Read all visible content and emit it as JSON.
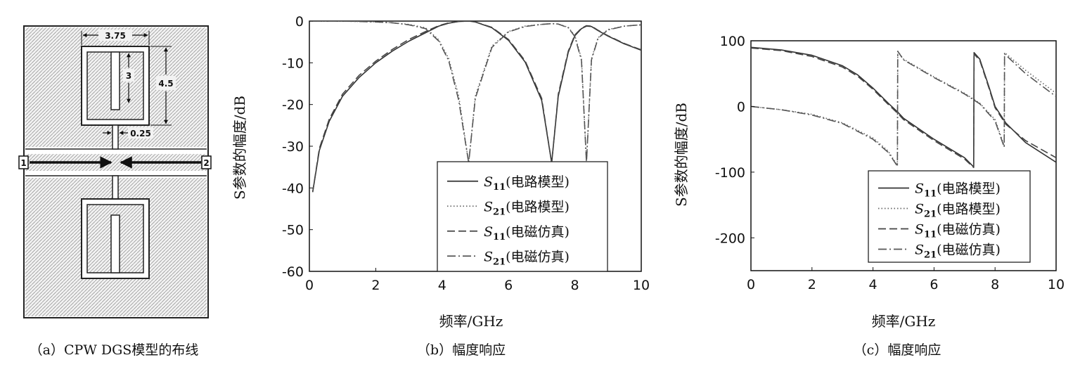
{
  "figure": {
    "captions": {
      "a": "（a）CPW DGS模型的布线",
      "b": "（b）幅度响应",
      "c": "（c）幅度响应"
    }
  },
  "layout_diagram": {
    "dimension_labels": {
      "width": "3.75",
      "inner_height": "3",
      "outer_height": "4.5",
      "gap": "0.25"
    },
    "port_labels": [
      "1",
      "2"
    ]
  },
  "chart_data": [
    {
      "type": "line",
      "title": "",
      "xlabel": "频率/GHz",
      "ylabel": "S参数的幅度/dB",
      "xlim": [
        0,
        10
      ],
      "ylim": [
        -60,
        0
      ],
      "xticks": [
        "0",
        "2",
        "4",
        "6",
        "8",
        "10"
      ],
      "yticks": [
        "0",
        "-10",
        "-20",
        "-30",
        "-40",
        "-50",
        "-60"
      ],
      "grid": false,
      "legend_position": "bottom-right",
      "x": [
        0.1,
        0.3,
        0.6,
        1.0,
        1.5,
        2.0,
        2.5,
        3.0,
        3.5,
        3.9,
        4.2,
        4.5,
        4.8,
        5.0,
        5.5,
        6.0,
        6.5,
        7.0,
        7.3,
        7.5,
        7.8,
        8.0,
        8.2,
        8.35,
        8.5,
        8.7,
        9.0,
        9.5,
        10.0
      ],
      "series": [
        {
          "legend_symbol": "S11",
          "legend_suffix": "(电路模型)",
          "style": "solid",
          "values": [
            -41,
            -31,
            -24,
            -18,
            -13.5,
            -10,
            -7.2,
            -4.8,
            -2.8,
            -1.2,
            -0.5,
            -0.1,
            0,
            -0.2,
            -1.6,
            -4.6,
            -9.8,
            -19,
            -34,
            -18,
            -7.5,
            -3.5,
            -1.8,
            -1.2,
            -1.3,
            -2.3,
            -3.6,
            -5.5,
            -7
          ]
        },
        {
          "legend_symbol": "S21",
          "legend_suffix": "(电路模型)",
          "style": "dotted",
          "values": [
            0,
            0,
            0,
            0,
            -0.1,
            -0.2,
            -0.4,
            -0.8,
            -1.6,
            -4.5,
            -9,
            -18,
            -34,
            -18,
            -6,
            -2.5,
            -1.2,
            -0.8,
            -0.6,
            -0.7,
            -1.5,
            -3.5,
            -9,
            -34,
            -9,
            -4,
            -2,
            -1.2,
            -0.9
          ]
        },
        {
          "legend_symbol": "S11",
          "legend_suffix": "(电磁仿真)",
          "style": "dashed",
          "values": [
            -41,
            -30.5,
            -23.5,
            -17.5,
            -13,
            -9.6,
            -6.8,
            -4.4,
            -2.5,
            -1.1,
            -0.4,
            -0.1,
            0,
            -0.2,
            -1.5,
            -4.4,
            -9.5,
            -18.5,
            -34,
            -17.5,
            -7.2,
            -3.3,
            -1.7,
            -1.1,
            -1.2,
            -2.2,
            -3.5,
            -5.4,
            -6.9
          ]
        },
        {
          "legend_symbol": "S21",
          "legend_suffix": "(电磁仿真)",
          "style": "dash-dot",
          "values": [
            0,
            0,
            0,
            0,
            -0.1,
            -0.2,
            -0.4,
            -0.9,
            -1.8,
            -4.8,
            -9.5,
            -19,
            -34,
            -18.5,
            -6.3,
            -2.6,
            -1.3,
            -0.8,
            -0.6,
            -0.7,
            -1.6,
            -3.7,
            -9.5,
            -34,
            -9.3,
            -4.1,
            -2.1,
            -1.2,
            -0.9
          ]
        }
      ]
    },
    {
      "type": "line",
      "title": "",
      "xlabel": "频率/GHz",
      "ylabel": "S参数的幅度/dB",
      "xlim": [
        0,
        10
      ],
      "ylim": [
        -250,
        100
      ],
      "xticks": [
        "0",
        "2",
        "4",
        "6",
        "8",
        "10"
      ],
      "yticks": [
        "100",
        "0",
        "-100",
        "-200"
      ],
      "grid": false,
      "legend_position": "bottom-right",
      "series": [
        {
          "legend_symbol": "S11",
          "legend_suffix": "(电路模型)",
          "style": "solid",
          "x": [
            0,
            1,
            2,
            3,
            3.5,
            4,
            4.5,
            4.8,
            5,
            6,
            7,
            7.3,
            7.31,
            7.5,
            7.8,
            8,
            8.35,
            9,
            10
          ],
          "values": [
            90,
            86,
            78,
            62,
            48,
            28,
            5,
            -8,
            -18,
            -50,
            -78,
            -92,
            82,
            72,
            30,
            0,
            -25,
            -55,
            -85
          ]
        },
        {
          "legend_symbol": "S21",
          "legend_suffix": "(电路模型)",
          "style": "dotted",
          "x": [
            0,
            1,
            2,
            3,
            4,
            4.5,
            4.8,
            4.81,
            5,
            6,
            7,
            7.5,
            8,
            8.3,
            8.31,
            9,
            10
          ],
          "values": [
            0,
            -5,
            -12,
            -25,
            -48,
            -68,
            -90,
            84,
            72,
            45,
            20,
            5,
            -20,
            -60,
            82,
            55,
            20
          ]
        },
        {
          "legend_symbol": "S11",
          "legend_suffix": "(电磁仿真)",
          "style": "dashed",
          "x": [
            0,
            1,
            2,
            3,
            3.5,
            4,
            4.5,
            4.8,
            5,
            6,
            7,
            7.3,
            7.31,
            7.5,
            7.8,
            8,
            8.35,
            9,
            10
          ],
          "values": [
            89,
            85,
            76,
            60,
            46,
            26,
            3,
            -10,
            -20,
            -52,
            -80,
            -93,
            80,
            70,
            28,
            -2,
            -27,
            -52,
            -78
          ]
        },
        {
          "legend_symbol": "S21",
          "legend_suffix": "(电磁仿真)",
          "style": "dash-dot",
          "x": [
            0,
            1,
            2,
            3,
            4,
            4.5,
            4.8,
            4.81,
            5,
            6,
            7,
            7.5,
            8,
            8.3,
            8.31,
            9,
            10
          ],
          "values": [
            0,
            -5,
            -13,
            -26,
            -50,
            -70,
            -91,
            84,
            71,
            44,
            19,
            4,
            -22,
            -62,
            80,
            50,
            15
          ]
        }
      ]
    }
  ]
}
